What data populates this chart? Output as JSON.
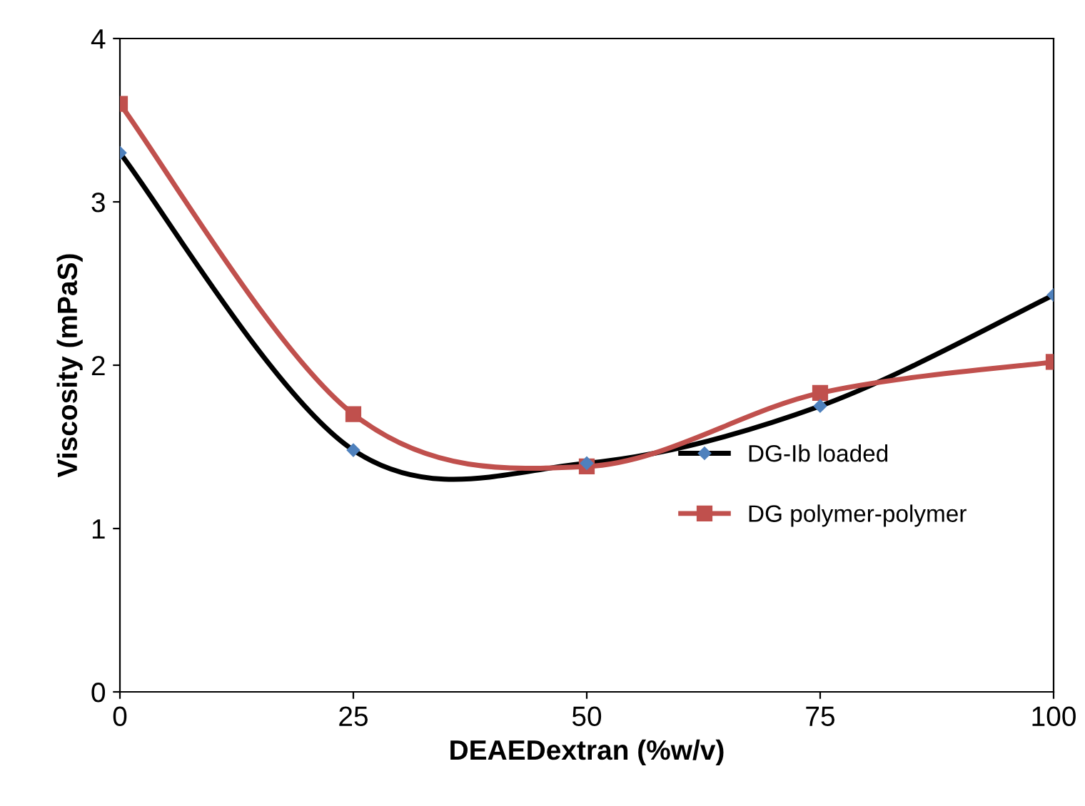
{
  "chart_data": {
    "type": "line",
    "xlabel": "DEAEDextran (%w/v)",
    "ylabel": "Viscosity (mPaS)",
    "x": [
      0,
      25,
      50,
      75,
      100
    ],
    "series": [
      {
        "name": "DG-Ib loaded",
        "color": "#000000",
        "marker": "diamond",
        "values": [
          3.3,
          1.48,
          1.4,
          1.75,
          2.43
        ]
      },
      {
        "name": "DG polymer-polymer",
        "color": "#c0504d",
        "marker": "square",
        "values": [
          3.6,
          1.7,
          1.38,
          1.83,
          2.02
        ]
      }
    ],
    "xlim": [
      0,
      100
    ],
    "xticks": [
      0,
      25,
      50,
      75,
      100
    ],
    "ylim": [
      0,
      4
    ],
    "yticks": [
      0,
      1,
      2,
      3,
      4
    ],
    "grid": false,
    "legend": "bottom right",
    "line_style": "solid"
  }
}
